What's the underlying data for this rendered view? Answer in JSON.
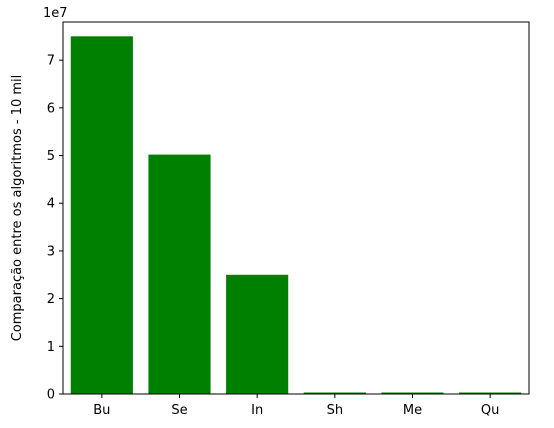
{
  "chart_data": {
    "type": "bar",
    "categories": [
      "Bu",
      "Se",
      "In",
      "Sh",
      "Me",
      "Qu"
    ],
    "values": [
      75000000,
      50200000,
      25000000,
      150000,
      300000,
      160000
    ],
    "ylabel": "Comparação entre os algoritmos - 10 mil",
    "xlabel": "",
    "offset_text": "1e7",
    "ylim": [
      0,
      78000000
    ],
    "yticks": [
      0,
      10000000,
      20000000,
      30000000,
      40000000,
      50000000,
      60000000,
      70000000
    ],
    "ytick_labels": [
      "0",
      "1",
      "2",
      "3",
      "4",
      "5",
      "6",
      "7"
    ],
    "bar_color": "#008000",
    "grid": false,
    "legend": "none"
  }
}
